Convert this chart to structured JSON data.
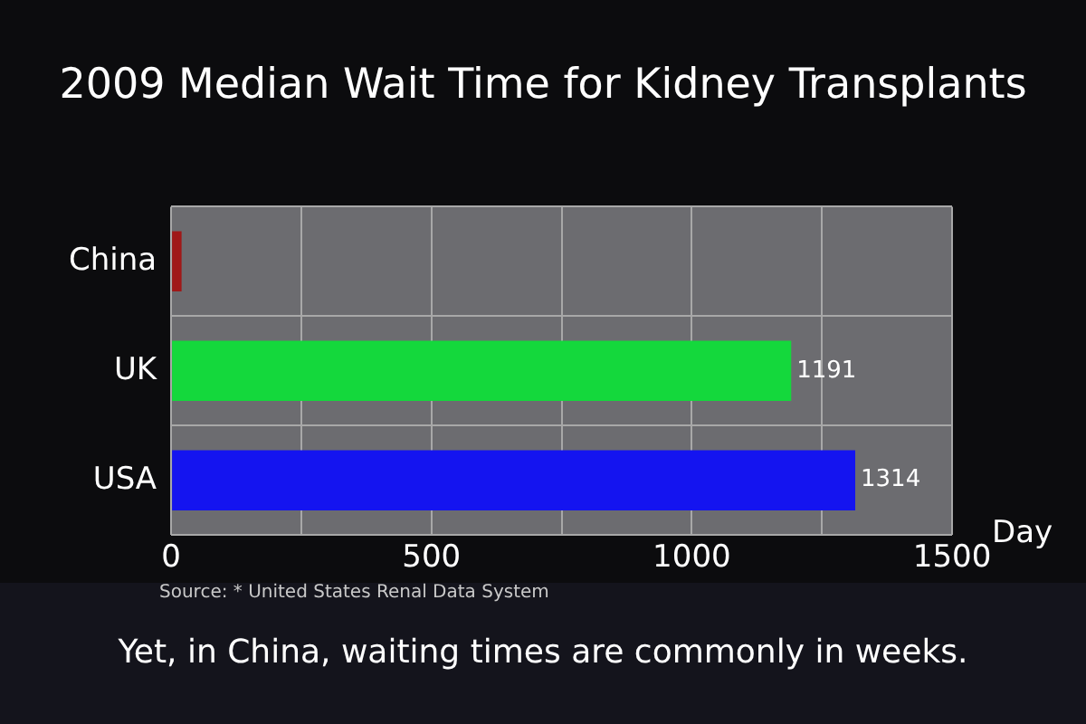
{
  "chart_data": {
    "type": "bar",
    "orientation": "horizontal",
    "title": "2009 Median Wait Time for Kidney Transplants",
    "xlabel": "Day",
    "categories": [
      "China",
      "UK",
      "USA"
    ],
    "values": [
      20,
      1191,
      1314
    ],
    "colors": [
      "#a01818",
      "#14d83c",
      "#1414f0"
    ],
    "value_labels": [
      null,
      "1191",
      "1314"
    ],
    "xlim": [
      0,
      1500
    ],
    "xticks": [
      0,
      {
        "value": 250,
        "label": null
      },
      500,
      {
        "value": 750,
        "label": null
      },
      1000,
      {
        "value": 1250,
        "label": null
      },
      1500
    ],
    "grid": true,
    "legend": false,
    "annotations": [
      "Source:  * United States Renal Data System",
      "Yet, in China, waiting times are commonly in weeks."
    ]
  }
}
